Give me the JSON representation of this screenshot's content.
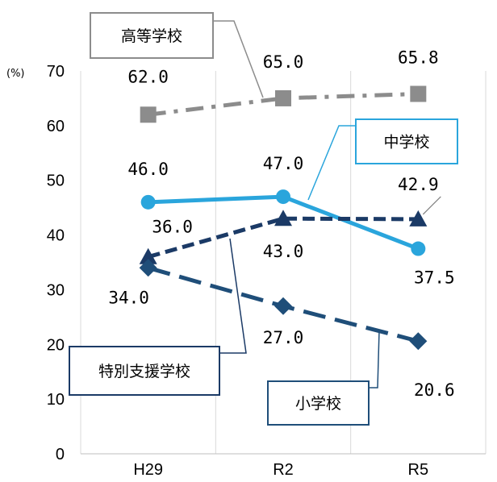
{
  "chart_data": {
    "type": "line",
    "categories": [
      "H29",
      "R2",
      "R5"
    ],
    "y_unit": "(%)",
    "ylim": [
      0,
      70
    ],
    "y_ticks": [
      0,
      10,
      20,
      30,
      40,
      50,
      60,
      70
    ],
    "grid": "vertical lines at category boundaries",
    "series": [
      {
        "name": "高等学校",
        "values": [
          62.0,
          65.0,
          65.8
        ],
        "labels": [
          "62.0",
          "65.0",
          "65.8"
        ],
        "color": "#8c8c8c",
        "line_style": "dash-dot",
        "marker": "square"
      },
      {
        "name": "中学校",
        "values": [
          46.0,
          47.0,
          37.5
        ],
        "labels": [
          "46.0",
          "47.0",
          "37.5"
        ],
        "color": "#2aa5dc",
        "line_style": "solid",
        "marker": "circle"
      },
      {
        "name": "特別支援学校",
        "values": [
          36.0,
          43.0,
          42.9
        ],
        "labels": [
          "36.0",
          "43.0",
          "42.9"
        ],
        "color": "#1b3a66",
        "line_style": "dashed",
        "marker": "triangle"
      },
      {
        "name": "小学校",
        "values": [
          34.0,
          27.0,
          20.6
        ],
        "labels": [
          "34.0",
          "27.0",
          "20.6"
        ],
        "color": "#1f4e79",
        "line_style": "long-dash",
        "marker": "diamond"
      }
    ]
  }
}
